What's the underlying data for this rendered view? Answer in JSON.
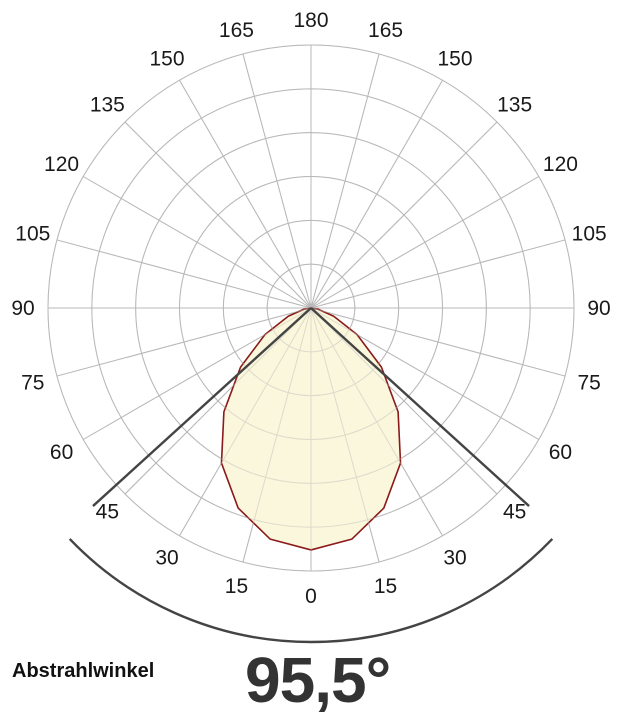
{
  "chart_data": {
    "type": "polar",
    "angle_labels_left": [
      "0",
      "15",
      "30",
      "45",
      "60",
      "75",
      "90",
      "105",
      "120",
      "135",
      "150",
      "165",
      "180"
    ],
    "angle_labels_right": [
      "15",
      "30",
      "45",
      "60",
      "75",
      "90",
      "105",
      "120",
      "135",
      "150",
      "165"
    ],
    "angle_step_deg": 15,
    "ring_count": 6,
    "beam_angle_deg": 95.5,
    "distribution_curve": {
      "angles_deg": [
        0,
        10,
        20,
        30,
        40,
        50,
        60,
        70,
        80,
        90
      ],
      "relative_intensity": [
        1.0,
        0.97,
        0.88,
        0.74,
        0.56,
        0.38,
        0.22,
        0.1,
        0.03,
        0.0
      ]
    },
    "grid": true
  },
  "caption": {
    "label": "Abstrahlwinkel",
    "value": "95,5°"
  },
  "colors": {
    "grid": "#b8b8b8",
    "curve_stroke": "#8b1a1a",
    "curve_fill": "#fbf7dc",
    "beam_lines": "#444444"
  }
}
